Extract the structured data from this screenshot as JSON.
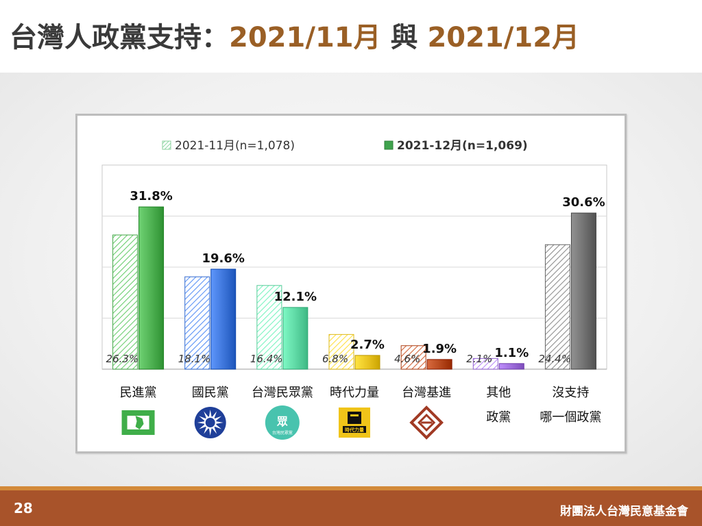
{
  "header": {
    "title_main": "台灣人政黨支持：",
    "title_date1": "2021/11月",
    "title_joiner": " 與 ",
    "title_date2": "2021/12月"
  },
  "footer": {
    "page_number": "28",
    "organization": "財團法人台灣民意基金會"
  },
  "colors": {
    "dpp": "#4caf50",
    "kmt": "#3b73d8",
    "tpp": "#5cd6a2",
    "npp": "#e8c21f",
    "tsp": "#b5471c",
    "other": "#9b6bd9",
    "none": "#6f6f6f",
    "title_accent": "#9a5f25",
    "footer": "#a8532a"
  },
  "chart_data": {
    "type": "bar",
    "categories": [
      {
        "label_lines": [
          "民進黨"
        ],
        "logo": "dpp-logo",
        "color": "#4caf50"
      },
      {
        "label_lines": [
          "國民黨"
        ],
        "logo": "kmt-logo",
        "color": "#3b73d8"
      },
      {
        "label_lines": [
          "台灣民眾黨"
        ],
        "logo": "tpp-logo",
        "color": "#5cd6a2"
      },
      {
        "label_lines": [
          "時代力量"
        ],
        "logo": "npp-logo",
        "color": "#e8c21f"
      },
      {
        "label_lines": [
          "台灣基進"
        ],
        "logo": "tsp-logo",
        "color": "#b5471c"
      },
      {
        "label_lines": [
          "其他",
          "政黨"
        ],
        "logo": "",
        "color": "#9b6bd9"
      },
      {
        "label_lines": [
          "沒支持",
          "哪一個政黨"
        ],
        "logo": "",
        "color": "#6f6f6f"
      }
    ],
    "series": [
      {
        "name": "2021-11月(n=1,078)",
        "values": [
          26.3,
          18.1,
          16.4,
          6.8,
          4.6,
          2.1,
          24.4
        ],
        "pattern": "hatched"
      },
      {
        "name": "2021-12月(n=1,069)",
        "values": [
          31.8,
          19.6,
          12.1,
          2.7,
          1.9,
          1.1,
          30.6
        ],
        "pattern": "solid"
      }
    ],
    "value_labels": [
      [
        "26.3%",
        "18.1%",
        "16.4%",
        "6.8%",
        "4.6%",
        "2.1%",
        "24.4%"
      ],
      [
        "31.8%",
        "19.6%",
        "12.1%",
        "2.7%",
        "1.9%",
        "1.1%",
        "30.6%"
      ]
    ],
    "ylim": [
      0,
      40
    ],
    "grid": true,
    "legend_position": "top",
    "logo_texts": {
      "tpp": "台灣民眾黨",
      "npp": "時代力量"
    }
  }
}
